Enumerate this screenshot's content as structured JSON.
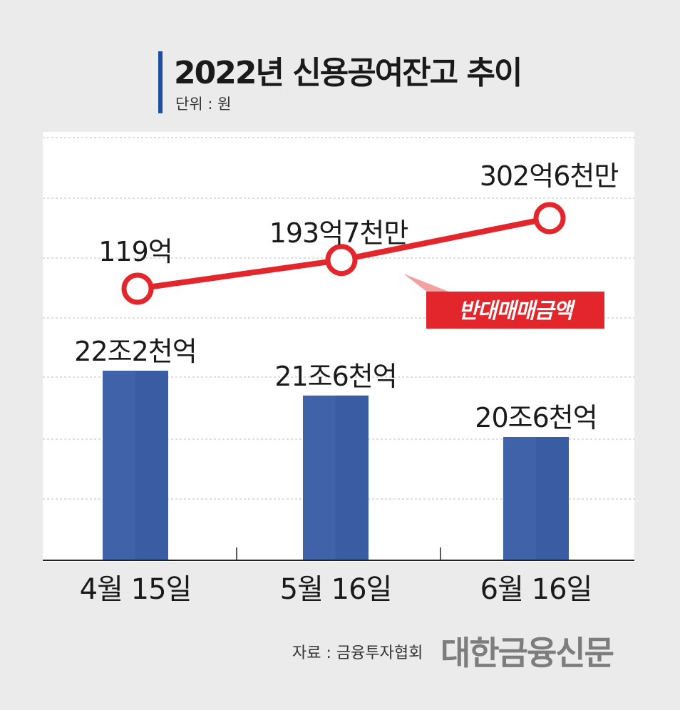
{
  "title": "2022년 신용공여잔고 추이",
  "unit_label": "단위 : 원",
  "source_label": "자료 : 금융투자협회",
  "publisher_logo": "대한금융신문",
  "colors": {
    "bar": "#3f62a8",
    "bar_dark": "#3559a0",
    "line": "#e2262c",
    "annotation_bg": "#e2262c",
    "title_accent": "#1f4fa0",
    "grid": "#bcbcbc"
  },
  "chart_data": {
    "type": "bar",
    "categories": [
      "4월 15일",
      "5월 16일",
      "6월 16일"
    ],
    "grid": true,
    "series": [
      {
        "type": "bar",
        "values": [
          22.2,
          21.6,
          20.6
        ],
        "value_unit": "조원",
        "labels": [
          "22조2천억",
          "21조6천억",
          "20조6천억"
        ]
      },
      {
        "type": "line",
        "name": "반대매매금액",
        "values": [
          119,
          193.7,
          302.6
        ],
        "value_unit": "억원",
        "labels": [
          "119억",
          "193억7천만",
          "302억6천만"
        ]
      }
    ]
  }
}
